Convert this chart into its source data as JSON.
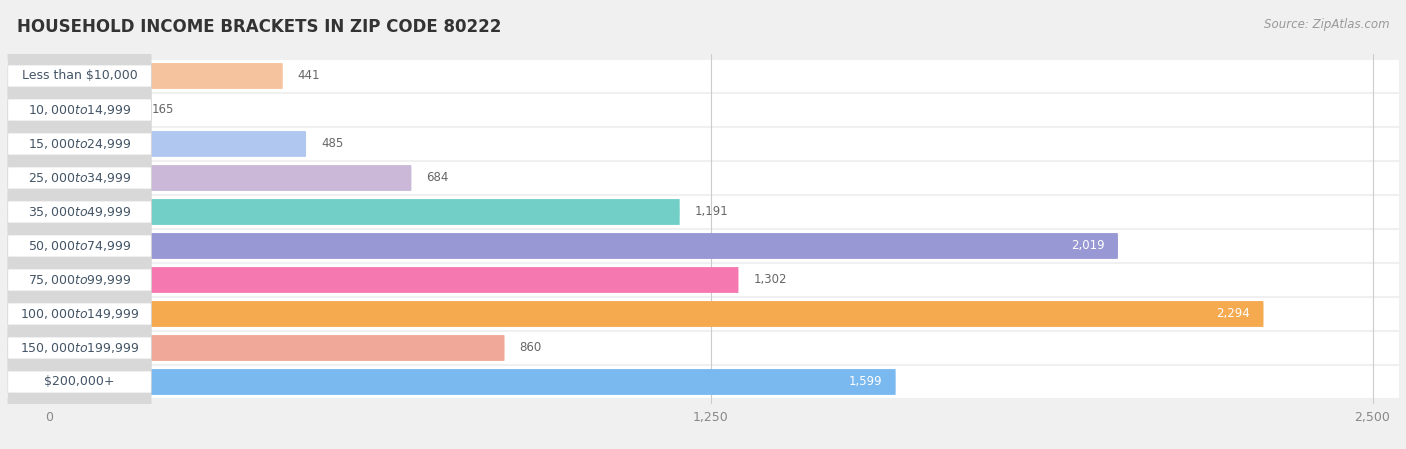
{
  "title": "HOUSEHOLD INCOME BRACKETS IN ZIP CODE 80222",
  "source": "Source: ZipAtlas.com",
  "categories": [
    "Less than $10,000",
    "$10,000 to $14,999",
    "$15,000 to $24,999",
    "$25,000 to $34,999",
    "$35,000 to $49,999",
    "$50,000 to $74,999",
    "$75,000 to $99,999",
    "$100,000 to $149,999",
    "$150,000 to $199,999",
    "$200,000+"
  ],
  "values": [
    441,
    165,
    485,
    684,
    1191,
    2019,
    1302,
    2294,
    860,
    1599
  ],
  "bar_colors": [
    "#f5c49e",
    "#f5aaa8",
    "#b0c8f0",
    "#cbb8d8",
    "#72cfc8",
    "#9898d4",
    "#f578b0",
    "#f5aa50",
    "#f0a898",
    "#7ab8f0"
  ],
  "label_colors": [
    "#555555",
    "#555555",
    "#555555",
    "#555555",
    "#555555",
    "#ffffff",
    "#555555",
    "#ffffff",
    "#555555",
    "#ffffff"
  ],
  "value_inside": [
    false,
    false,
    false,
    false,
    false,
    true,
    false,
    true,
    false,
    true
  ],
  "xlim_left": -80,
  "xlim_right": 2550,
  "xticks": [
    0,
    1250,
    2500
  ],
  "background_color": "#f0f0f0",
  "bar_bg_color": "#ffffff",
  "row_bg_color": "#f5f5f5",
  "title_fontsize": 12,
  "source_fontsize": 8.5,
  "label_fontsize": 9,
  "value_fontsize": 8.5
}
